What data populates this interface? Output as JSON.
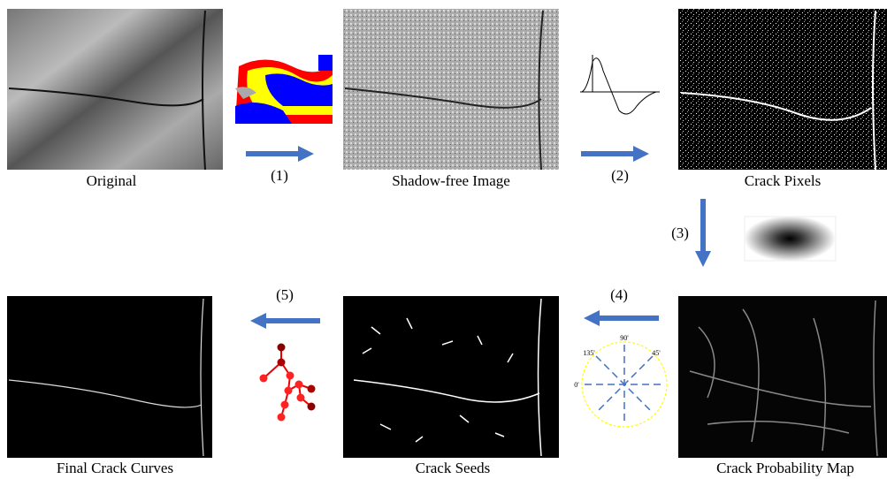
{
  "captions": {
    "original": "Original",
    "shadow_free": "Shadow-free Image",
    "crack_pixels": "Crack Pixels",
    "final_curves": "Final Crack Curves",
    "crack_seeds": "Crack Seeds",
    "probability_map": "Crack Probability Map"
  },
  "steps": [
    "(1)",
    "(2)",
    "(3)",
    "(4)",
    "(5)"
  ],
  "angles": {
    "a90": "90'",
    "a135": "135'",
    "a45": "45'",
    "a0": "0'"
  }
}
